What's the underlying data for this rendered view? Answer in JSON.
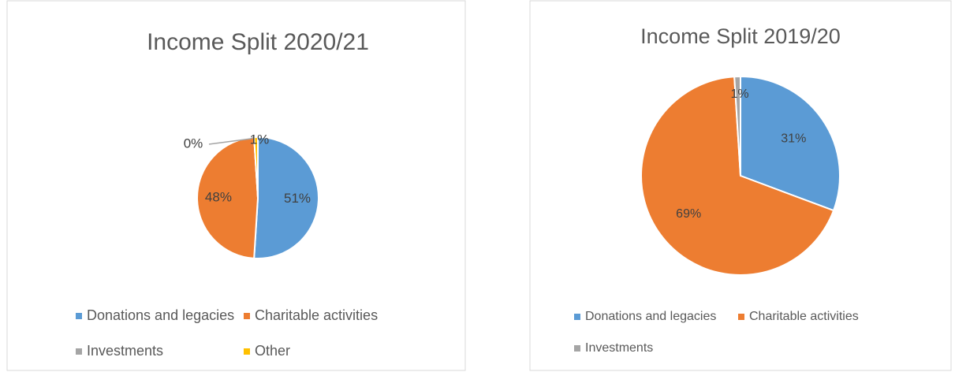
{
  "chart_data": [
    {
      "type": "pie",
      "title": "Income Split 2020/21",
      "categories": [
        "Donations and legacies",
        "Charitable activities",
        "Investments",
        "Other"
      ],
      "values": [
        51,
        48,
        0,
        1
      ],
      "value_labels": [
        "51%",
        "48%",
        "0%",
        "1%"
      ],
      "colors": [
        "#5b9bd5",
        "#ed7d31",
        "#a5a5a5",
        "#ffc000"
      ]
    },
    {
      "type": "pie",
      "title": "Income Split 2019/20",
      "categories": [
        "Donations and legacies",
        "Charitable activities",
        "Investments"
      ],
      "values": [
        31,
        69,
        1
      ],
      "value_labels": [
        "31%",
        "69%",
        "1%"
      ],
      "colors": [
        "#5b9bd5",
        "#ed7d31",
        "#a5a5a5"
      ]
    }
  ]
}
